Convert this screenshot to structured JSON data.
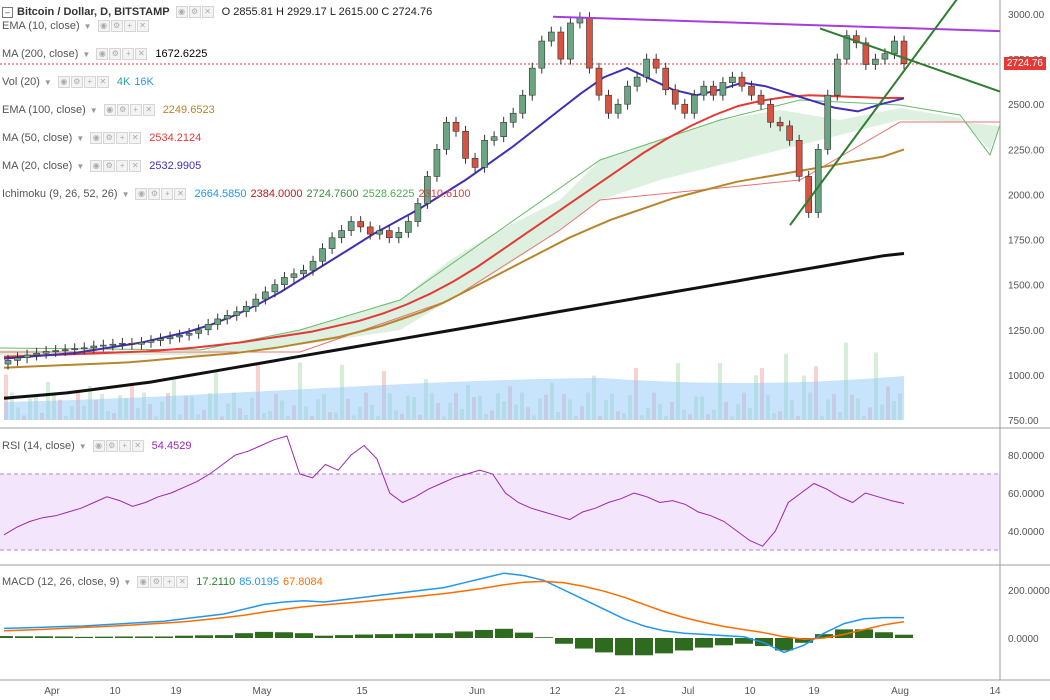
{
  "header": {
    "symbol": "Bitcoin / Dollar, D, BITSTAMP",
    "ohlc": "O 2855.81  H 2929.17  L 2615.00  C 2724.76",
    "current_price": "2724.76",
    "current_price_color": "#e53935"
  },
  "legend": [
    {
      "label": "EMA (10, close)",
      "values": [],
      "color": "#999"
    },
    {
      "label": "MA (200, close)",
      "values": [
        "1672.6225"
      ],
      "color": "#000000"
    },
    {
      "label": "Vol (20)",
      "values": [
        "4K",
        "16K"
      ],
      "colors": [
        "#26a69a",
        "#2196f3"
      ],
      "color": "#555"
    },
    {
      "label": "EMA (100, close)",
      "values": [
        "2249.6523"
      ],
      "color": "#b7862c"
    },
    {
      "label": "MA (50, close)",
      "values": [
        "2534.2124"
      ],
      "color": "#e53935"
    },
    {
      "label": "MA (20, close)",
      "values": [
        "2532.9905"
      ],
      "color": "#3f2fb5"
    },
    {
      "label": "Ichimoku (9, 26, 52, 26)",
      "values": [
        "2664.5850",
        "2384.0000",
        "2724.7600",
        "2528.6225",
        "2310.6100"
      ],
      "colors": [
        "#2196f3",
        "#b71c1c",
        "#388e3c",
        "#4caf50",
        "#e53935"
      ],
      "color": "#555"
    }
  ],
  "rsi_legend": {
    "label": "RSI (14, close)",
    "value": "54.4529",
    "color": "#9c27b0"
  },
  "macd_legend": {
    "label": "MACD (12, 26, close, 9)",
    "values": [
      "17.2110",
      "85.0195",
      "67.8084"
    ],
    "colors": [
      "#2e7d32",
      "#2196f3",
      "#ff6d00"
    ]
  },
  "chart_data": {
    "type": "candlestick",
    "price_axis": {
      "ticks": [
        "3000.00",
        "2750.00",
        "2500.00",
        "2250.00",
        "2000.00",
        "1750.00",
        "1500.00",
        "1250.00",
        "1000.00",
        "750.00"
      ],
      "ylim": [
        750,
        3000
      ]
    },
    "rsi_axis": {
      "ticks": [
        "80.0000",
        "60.0000",
        "40.0000"
      ],
      "bands": [
        30,
        70
      ]
    },
    "macd_axis": {
      "ticks": [
        "200.0000",
        "0.0000"
      ]
    },
    "x_ticks": [
      "Apr",
      "10",
      "19",
      "May",
      "15",
      "Jun",
      "12",
      "21",
      "Jul",
      "10",
      "19",
      "Aug",
      "14"
    ],
    "price_close": [
      1080,
      1095,
      1110,
      1120,
      1130,
      1135,
      1140,
      1145,
      1150,
      1160,
      1165,
      1170,
      1175,
      1170,
      1180,
      1190,
      1200,
      1210,
      1220,
      1230,
      1250,
      1280,
      1310,
      1330,
      1350,
      1380,
      1420,
      1460,
      1500,
      1540,
      1560,
      1580,
      1630,
      1700,
      1760,
      1800,
      1850,
      1820,
      1780,
      1800,
      1760,
      1790,
      1850,
      1950,
      2100,
      2250,
      2400,
      2350,
      2200,
      2150,
      2300,
      2320,
      2400,
      2450,
      2550,
      2700,
      2850,
      2900,
      2750,
      2950,
      2980,
      2700,
      2550,
      2450,
      2500,
      2600,
      2650,
      2750,
      2700,
      2580,
      2500,
      2450,
      2550,
      2600,
      2550,
      2620,
      2650,
      2600,
      2550,
      2500,
      2400,
      2380,
      2300,
      2100,
      1900,
      2250,
      2550,
      2750,
      2880,
      2840,
      2720,
      2750,
      2780,
      2850,
      2724.76
    ],
    "rsi": [
      38,
      42,
      45,
      47,
      48,
      50,
      52,
      55,
      58,
      56,
      53,
      55,
      58,
      60,
      63,
      66,
      70,
      75,
      80,
      82,
      85,
      88,
      90,
      70,
      68,
      75,
      72,
      80,
      85,
      78,
      60,
      55,
      58,
      62,
      65,
      68,
      70,
      72,
      70,
      60,
      55,
      52,
      50,
      48,
      46,
      50,
      52,
      55,
      57,
      60,
      58,
      55,
      56,
      54,
      50,
      48,
      45,
      40,
      35,
      32,
      40,
      55,
      60,
      65,
      62,
      58,
      55,
      60,
      58,
      56,
      54.45
    ],
    "macd": [
      40,
      42,
      45,
      48,
      50,
      55,
      60,
      65,
      70,
      80,
      90,
      100,
      120,
      140,
      150,
      155,
      150,
      160,
      170,
      180,
      190,
      200,
      210,
      230,
      250,
      270,
      260,
      240,
      200,
      160,
      120,
      80,
      50,
      30,
      20,
      15,
      10,
      5,
      -20,
      -60,
      -30,
      20,
      60,
      80,
      85,
      85.02
    ],
    "signal": [
      30,
      33,
      36,
      40,
      44,
      48,
      52,
      57,
      62,
      68,
      76,
      85,
      95,
      108,
      120,
      130,
      138,
      145,
      152,
      160,
      168,
      176,
      185,
      196,
      208,
      222,
      232,
      236,
      230,
      215,
      195,
      170,
      140,
      110,
      85,
      65,
      48,
      35,
      22,
      5,
      -5,
      0,
      15,
      35,
      55,
      67.81
    ],
    "ma200": [
      870,
      880,
      890,
      900,
      915,
      930,
      945,
      960,
      980,
      1000,
      1020,
      1040,
      1060,
      1080,
      1100,
      1120,
      1140,
      1160,
      1180,
      1200,
      1220,
      1240,
      1260,
      1280,
      1300,
      1320,
      1340,
      1360,
      1380,
      1400,
      1420,
      1440,
      1460,
      1480,
      1500,
      1520,
      1540,
      1560,
      1580,
      1600,
      1620,
      1640,
      1660,
      1672.62
    ],
    "ema100": [
      1040,
      1045,
      1050,
      1055,
      1060,
      1065,
      1070,
      1080,
      1090,
      1100,
      1110,
      1120,
      1135,
      1150,
      1170,
      1190,
      1210,
      1240,
      1270,
      1310,
      1350,
      1400,
      1460,
      1520,
      1580,
      1640,
      1700,
      1760,
      1810,
      1860,
      1900,
      1940,
      1980,
      2010,
      2040,
      2070,
      2090,
      2110,
      2130,
      2150,
      2170,
      2190,
      2210,
      2249.65
    ],
    "ma50": [
      1100,
      1105,
      1110,
      1115,
      1120,
      1125,
      1130,
      1140,
      1150,
      1165,
      1180,
      1200,
      1220,
      1240,
      1270,
      1300,
      1340,
      1390,
      1450,
      1520,
      1600,
      1690,
      1780,
      1870,
      1960,
      2050,
      2140,
      2230,
      2310,
      2380,
      2440,
      2490,
      2520,
      2540,
      2550,
      2545,
      2540,
      2535,
      2534.21
    ],
    "ma20": [
      1090,
      1100,
      1110,
      1120,
      1140,
      1160,
      1180,
      1210,
      1240,
      1280,
      1330,
      1390,
      1460,
      1540,
      1620,
      1700,
      1780,
      1850,
      1920,
      2000,
      2080,
      2170,
      2260,
      2360,
      2460,
      2560,
      2650,
      2700,
      2640,
      2580,
      2550,
      2580,
      2620,
      2600,
      2560,
      2520,
      2480,
      2460,
      2500,
      2532.99
    ]
  }
}
